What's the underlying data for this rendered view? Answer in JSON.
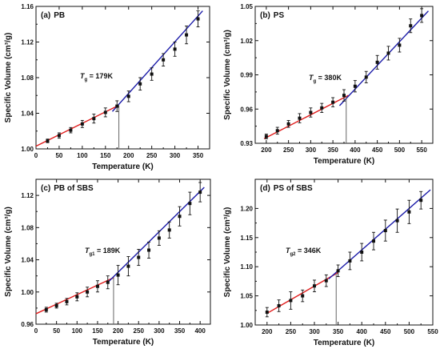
{
  "colors": {
    "low_fit": "#e01b1b",
    "high_fit": "#1a1aa8",
    "points": "#111111",
    "marker": "#666666"
  },
  "chart_data": [
    {
      "type": "scatter",
      "panel_label": "(a)",
      "title": "PB",
      "xlabel": "Temperature (K)",
      "ylabel": "Specific Volume (cm³/g)",
      "xlim": [
        0,
        375
      ],
      "ylim": [
        1.0,
        1.16
      ],
      "xticks": [
        0,
        50,
        100,
        150,
        200,
        250,
        300,
        350
      ],
      "yticks": [
        1.0,
        1.04,
        1.08,
        1.12,
        1.16
      ],
      "ytick_decimals": 2,
      "transition": {
        "symbol": "T",
        "subscript": "g",
        "value_text": " = 179K",
        "x": 179
      },
      "fit_low": {
        "x": [
          0,
          179
        ],
        "y": [
          1.003,
          1.049
        ]
      },
      "fit_high": {
        "x": [
          165,
          360
        ],
        "y": [
          1.042,
          1.155
        ]
      },
      "x": [
        25,
        50,
        75,
        100,
        125,
        150,
        175,
        200,
        225,
        250,
        275,
        300,
        325,
        350
      ],
      "y": [
        1.009,
        1.015,
        1.021,
        1.028,
        1.034,
        1.041,
        1.048,
        1.059,
        1.073,
        1.084,
        1.1,
        1.112,
        1.128,
        1.146
      ],
      "err": [
        0.002,
        0.003,
        0.003,
        0.004,
        0.005,
        0.005,
        0.006,
        0.006,
        0.007,
        0.007,
        0.007,
        0.008,
        0.01,
        0.009
      ]
    },
    {
      "type": "scatter",
      "panel_label": "(b)",
      "title": "PS",
      "xlabel": "Temperature (K)",
      "ylabel": "Specific Volume (cm³/g)",
      "xlim": [
        175,
        575
      ],
      "ylim": [
        0.93,
        1.05
      ],
      "xticks": [
        200,
        250,
        300,
        350,
        400,
        450,
        500,
        550
      ],
      "yticks": [
        0.93,
        0.96,
        0.99,
        1.02,
        1.05
      ],
      "ytick_decimals": 2,
      "transition": {
        "symbol": "T",
        "subscript": "g",
        "value_text": " = 380K",
        "x": 380
      },
      "fit_low": {
        "x": [
          195,
          385
        ],
        "y": [
          0.934,
          0.972
        ]
      },
      "fit_high": {
        "x": [
          365,
          565
        ],
        "y": [
          0.963,
          1.046
        ]
      },
      "x": [
        200,
        225,
        250,
        275,
        300,
        325,
        350,
        375,
        400,
        425,
        450,
        475,
        500,
        525,
        550
      ],
      "y": [
        0.936,
        0.941,
        0.947,
        0.952,
        0.957,
        0.961,
        0.966,
        0.972,
        0.98,
        0.988,
        1.001,
        1.009,
        1.016,
        1.033,
        1.042
      ],
      "err": [
        0.002,
        0.003,
        0.003,
        0.004,
        0.004,
        0.004,
        0.004,
        0.005,
        0.005,
        0.005,
        0.006,
        0.006,
        0.006,
        0.006,
        0.006
      ]
    },
    {
      "type": "scatter",
      "panel_label": "(c)",
      "title": "PB of SBS",
      "xlabel": "Temperature (K)",
      "ylabel": "Specific Volume (cm³/g)",
      "xlim": [
        0,
        425
      ],
      "ylim": [
        0.96,
        1.14
      ],
      "xticks": [
        0,
        50,
        100,
        150,
        200,
        250,
        300,
        350,
        400
      ],
      "yticks": [
        0.96,
        1.0,
        1.04,
        1.08,
        1.12
      ],
      "ytick_decimals": 2,
      "transition": {
        "symbol": "T",
        "subscript": "g1",
        "value_text": " = 189K",
        "x": 189
      },
      "fit_low": {
        "x": [
          0,
          190
        ],
        "y": [
          0.973,
          1.018
        ]
      },
      "fit_high": {
        "x": [
          175,
          410
        ],
        "y": [
          1.012,
          1.13
        ]
      },
      "x": [
        25,
        50,
        75,
        100,
        125,
        150,
        175,
        200,
        225,
        250,
        275,
        300,
        325,
        350,
        375,
        400
      ],
      "y": [
        0.978,
        0.983,
        0.988,
        0.994,
        1.0,
        1.007,
        1.012,
        1.021,
        1.032,
        1.043,
        1.052,
        1.067,
        1.077,
        1.094,
        1.11,
        1.124
      ],
      "err": [
        0.003,
        0.003,
        0.004,
        0.005,
        0.006,
        0.007,
        0.008,
        0.012,
        0.012,
        0.01,
        0.01,
        0.009,
        0.01,
        0.012,
        0.014,
        0.012
      ]
    },
    {
      "type": "scatter",
      "panel_label": "(d)",
      "title": "PS of SBS",
      "xlabel": "Temperature (K)",
      "ylabel": "Specific Volume (cm³/g)",
      "xlim": [
        175,
        550
      ],
      "ylim": [
        1.0,
        1.25
      ],
      "xticks": [
        200,
        250,
        300,
        350,
        400,
        450,
        500,
        550
      ],
      "yticks": [
        1.0,
        1.05,
        1.1,
        1.15,
        1.2
      ],
      "ytick_decimals": 2,
      "transition": {
        "symbol": "T",
        "subscript": "g2",
        "value_text": " = 346K",
        "x": 346
      },
      "fit_low": {
        "x": [
          200,
          350
        ],
        "y": [
          1.02,
          1.09
        ]
      },
      "fit_high": {
        "x": [
          330,
          545
        ],
        "y": [
          1.079,
          1.232
        ]
      },
      "x": [
        200,
        225,
        250,
        275,
        300,
        325,
        350,
        375,
        400,
        425,
        450,
        475,
        500,
        525
      ],
      "y": [
        1.022,
        1.033,
        1.042,
        1.05,
        1.067,
        1.076,
        1.093,
        1.11,
        1.125,
        1.144,
        1.162,
        1.179,
        1.194,
        1.214
      ],
      "err": [
        0.008,
        0.01,
        0.015,
        0.01,
        0.01,
        0.01,
        0.01,
        0.015,
        0.015,
        0.015,
        0.018,
        0.02,
        0.02,
        0.015
      ]
    }
  ]
}
